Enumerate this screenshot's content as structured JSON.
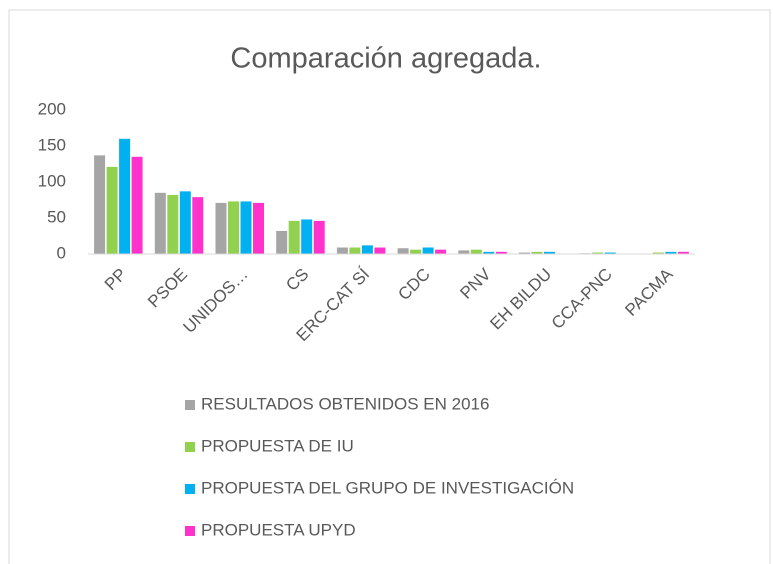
{
  "chart_data": {
    "type": "bar",
    "title": "Comparación agregada.",
    "categories": [
      "PP",
      "PSOE",
      "UNIDOS…",
      "CS",
      "ERC-CAT SÍ",
      "CDC",
      "PNV",
      "EH BILDU",
      "CCA-PNC",
      "PACMA"
    ],
    "series": [
      {
        "name": "RESULTADOS OBTENIDOS EN 2016",
        "color": "#a5a5a5",
        "values": [
          137,
          85,
          71,
          32,
          9,
          8,
          5,
          2,
          1,
          0
        ]
      },
      {
        "name": "PROPUESTA DE IU",
        "color": "#92d050",
        "values": [
          121,
          82,
          73,
          46,
          9,
          6,
          6,
          3,
          2,
          2
        ]
      },
      {
        "name": "PROPUESTA DEL GRUPO DE INVESTIGACIÓN",
        "color": "#00b0f0",
        "values": [
          160,
          87,
          73,
          48,
          12,
          9,
          3,
          3,
          2,
          3
        ]
      },
      {
        "name": "PROPUESTA UPYD",
        "color": "#ff33cc",
        "values": [
          135,
          79,
          71,
          46,
          9,
          6,
          3,
          0,
          0,
          3
        ]
      }
    ],
    "ylim": [
      0,
      200
    ],
    "yticks": [
      0,
      50,
      100,
      150,
      200
    ],
    "grid": false,
    "legend": "bottom"
  }
}
